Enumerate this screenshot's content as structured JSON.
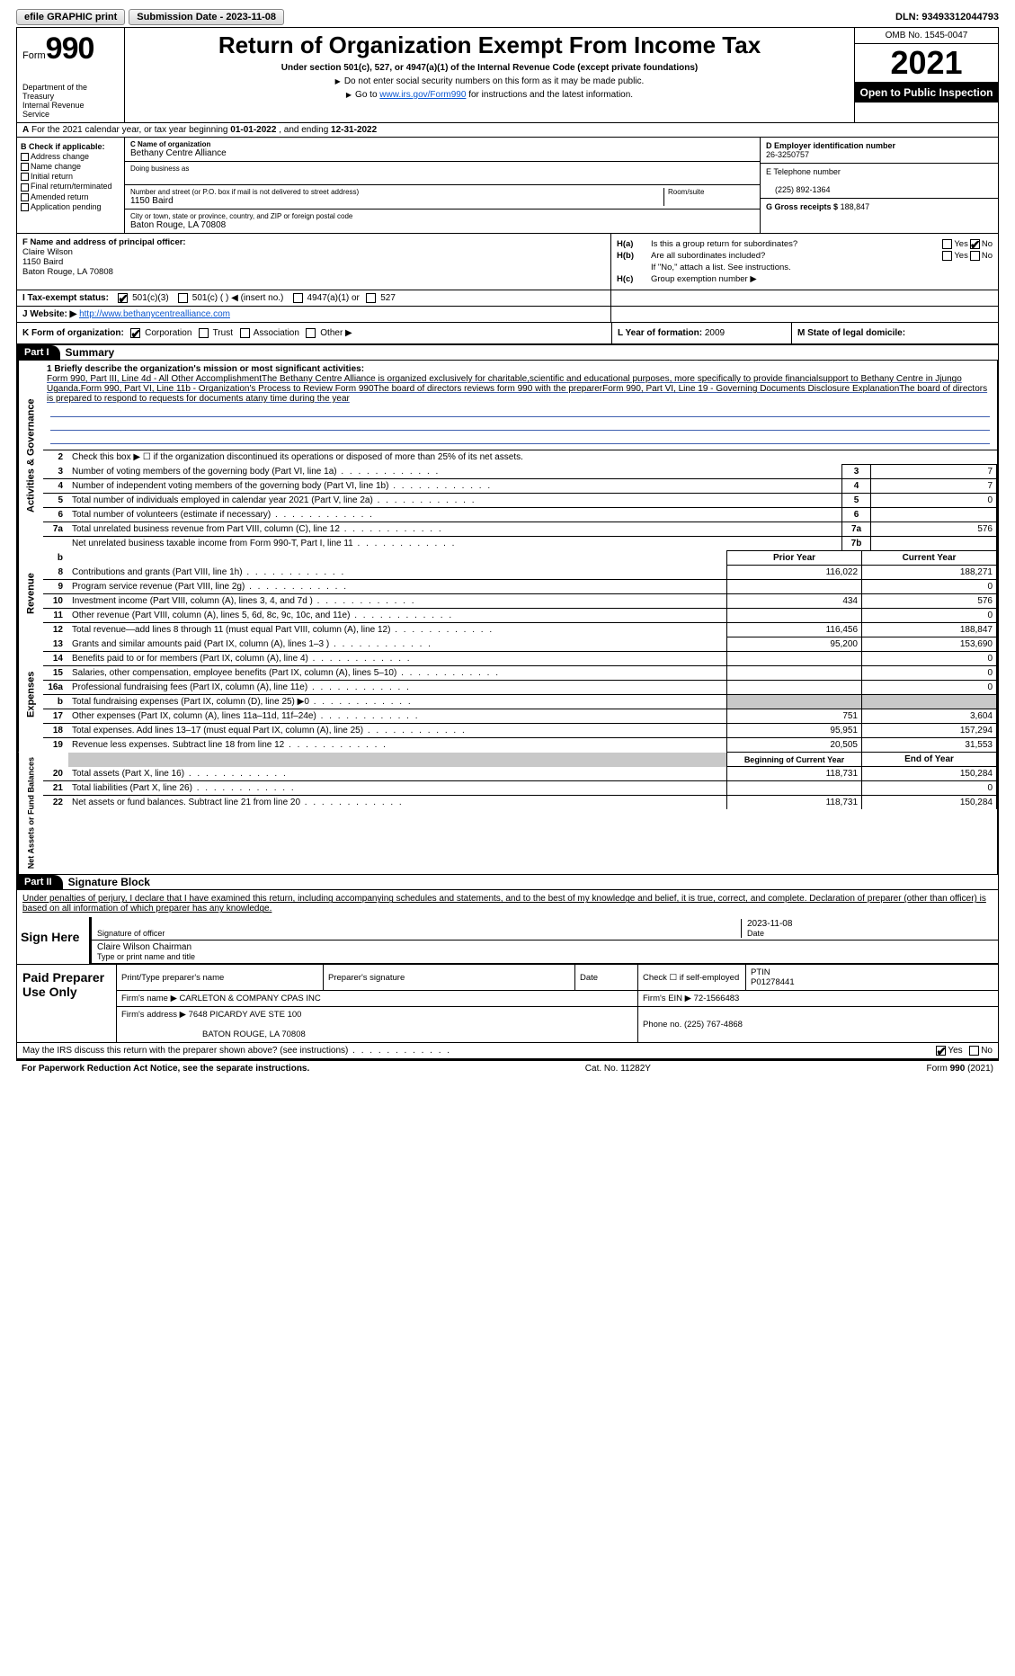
{
  "toolbar": {
    "efile": "efile GRAPHIC print",
    "submission": "Submission Date - 2023-11-08",
    "dln_label": "DLN:",
    "dln": "93493312044793"
  },
  "header": {
    "form_word": "Form",
    "form_num": "990",
    "dept": "Department of the Treasury",
    "irs": "Internal Revenue",
    "svc": "Service",
    "title": "Return of Organization Exempt From Income Tax",
    "sub": "Under section 501(c), 527, or 4947(a)(1) of the Internal Revenue Code (except private foundations)",
    "note1": "Do not enter social security numbers on this form as it may be made public.",
    "note2_pre": "Go to ",
    "note2_link": "www.irs.gov/Form990",
    "note2_post": " for instructions and the latest information.",
    "omb": "OMB No. 1545-0047",
    "year": "2021",
    "pubins": "Open to Public Inspection"
  },
  "row_a": {
    "pre": "For the 2021 calendar year, or tax year beginning ",
    "begin": "01-01-2022",
    "mid": "  , and ending ",
    "end": "12-31-2022",
    "a": "A"
  },
  "col_b": {
    "hdr": "B Check if applicable:",
    "items": [
      "Address change",
      "Name change",
      "Initial return",
      "Final return/terminated",
      "Amended return",
      "Application pending"
    ]
  },
  "col_c": {
    "name_lbl": "C Name of organization",
    "name": "Bethany Centre Alliance",
    "dba_lbl": "Doing business as",
    "dba": "",
    "addr_lbl": "Number and street (or P.O. box if mail is not delivered to street address)",
    "addr": "1150 Baird",
    "room_lbl": "Room/suite",
    "city_lbl": "City or town, state or province, country, and ZIP or foreign postal code",
    "city": "Baton Rouge, LA  70808"
  },
  "col_d": {
    "d_lbl": "D Employer identification number",
    "d_val": "26-3250757",
    "e_lbl": "E Telephone number",
    "e_val": "(225) 892-1364",
    "g_lbl": "G Gross receipts $",
    "g_val": "188,847"
  },
  "col_f": {
    "lbl": "F Name and address of principal officer:",
    "name": "Claire Wilson",
    "addr1": "1150 Baird",
    "addr2": "Baton Rouge, LA  70808"
  },
  "col_h": {
    "ha": "H(a)",
    "ha_txt": "Is this a group return for subordinates?",
    "hb": "H(b)",
    "hb_txt": "Are all subordinates included?",
    "hb_note": "If \"No,\" attach a list. See instructions.",
    "hc": "H(c)",
    "hc_txt": "Group exemption number ▶",
    "yes": "Yes",
    "no": "No"
  },
  "row_i": {
    "lbl": "I   Tax-exempt status:",
    "o1": "501(c)(3)",
    "o2": "501(c) (  ) ◀ (insert no.)",
    "o3": "4947(a)(1) or",
    "o4": "527"
  },
  "row_j": {
    "lbl": "J   Website: ▶",
    "url": "http://www.bethanycentrealliance.com"
  },
  "row_k": {
    "lbl": "K Form of organization:",
    "o1": "Corporation",
    "o2": "Trust",
    "o3": "Association",
    "o4": "Other ▶",
    "l_lbl": "L Year of formation:",
    "l_val": "2009",
    "m_lbl": "M State of legal domicile:"
  },
  "parts": {
    "p1": "Part I",
    "p1t": "Summary",
    "p2": "Part II",
    "p2t": "Signature Block"
  },
  "summary": {
    "tab1": "Activities & Governance",
    "tab2": "Revenue",
    "tab3": "Expenses",
    "tab4": "Net Assets or Fund Balances",
    "l1_lbl": "1  Briefly describe the organization's mission or most significant activities:",
    "l1_txt": "Form 990, Part III, Line 4d - All Other AccomplishmentThe Bethany Centre Alliance is organized exclusively for charitable,scientific and educational purposes, more specifically to provide financialsupport to Bethany Centre in Jjungo Uganda.Form 990, Part VI, Line 11b - Organization's Process to Review Form 990The board of directors reviews form 990 with the preparerForm 990, Part VI, Line 19 - Governing Documents Disclosure ExplanationThe board of directors is prepared to respond to requests for documents atany time during the year",
    "l2": "Check this box ▶ ☐ if the organization discontinued its operations or disposed of more than 25% of its net assets.",
    "rows_a": [
      {
        "n": "3",
        "d": "Number of voting members of the governing body (Part VI, line 1a)",
        "k": "3",
        "v": "7"
      },
      {
        "n": "4",
        "d": "Number of independent voting members of the governing body (Part VI, line 1b)",
        "k": "4",
        "v": "7"
      },
      {
        "n": "5",
        "d": "Total number of individuals employed in calendar year 2021 (Part V, line 2a)",
        "k": "5",
        "v": "0"
      },
      {
        "n": "6",
        "d": "Total number of volunteers (estimate if necessary)",
        "k": "6",
        "v": ""
      },
      {
        "n": "7a",
        "d": "Total unrelated business revenue from Part VIII, column (C), line 12",
        "k": "7a",
        "v": "576"
      },
      {
        "n": "",
        "d": "Net unrelated business taxable income from Form 990-T, Part I, line 11",
        "k": "7b",
        "v": ""
      }
    ],
    "hdr_b": "b",
    "hdr_py": "Prior Year",
    "hdr_cy": "Current Year",
    "rows_r": [
      {
        "n": "8",
        "d": "Contributions and grants (Part VIII, line 1h)",
        "p": "116,022",
        "c": "188,271"
      },
      {
        "n": "9",
        "d": "Program service revenue (Part VIII, line 2g)",
        "p": "",
        "c": "0"
      },
      {
        "n": "10",
        "d": "Investment income (Part VIII, column (A), lines 3, 4, and 7d )",
        "p": "434",
        "c": "576"
      },
      {
        "n": "11",
        "d": "Other revenue (Part VIII, column (A), lines 5, 6d, 8c, 9c, 10c, and 11e)",
        "p": "",
        "c": "0"
      },
      {
        "n": "12",
        "d": "Total revenue—add lines 8 through 11 (must equal Part VIII, column (A), line 12)",
        "p": "116,456",
        "c": "188,847"
      }
    ],
    "rows_e": [
      {
        "n": "13",
        "d": "Grants and similar amounts paid (Part IX, column (A), lines 1–3 )",
        "p": "95,200",
        "c": "153,690"
      },
      {
        "n": "14",
        "d": "Benefits paid to or for members (Part IX, column (A), line 4)",
        "p": "",
        "c": "0"
      },
      {
        "n": "15",
        "d": "Salaries, other compensation, employee benefits (Part IX, column (A), lines 5–10)",
        "p": "",
        "c": "0"
      },
      {
        "n": "16a",
        "d": "Professional fundraising fees (Part IX, column (A), line 11e)",
        "p": "",
        "c": "0"
      },
      {
        "n": "b",
        "d": "Total fundraising expenses (Part IX, column (D), line 25) ▶0",
        "p": "GREY",
        "c": "GREY"
      },
      {
        "n": "17",
        "d": "Other expenses (Part IX, column (A), lines 11a–11d, 11f–24e)",
        "p": "751",
        "c": "3,604"
      },
      {
        "n": "18",
        "d": "Total expenses. Add lines 13–17 (must equal Part IX, column (A), line 25)",
        "p": "95,951",
        "c": "157,294"
      },
      {
        "n": "19",
        "d": "Revenue less expenses. Subtract line 18 from line 12",
        "p": "20,505",
        "c": "31,553"
      }
    ],
    "hdr_bcy": "Beginning of Current Year",
    "hdr_eoy": "End of Year",
    "rows_n": [
      {
        "n": "20",
        "d": "Total assets (Part X, line 16)",
        "p": "118,731",
        "c": "150,284"
      },
      {
        "n": "21",
        "d": "Total liabilities (Part X, line 26)",
        "p": "",
        "c": "0"
      },
      {
        "n": "22",
        "d": "Net assets or fund balances. Subtract line 21 from line 20",
        "p": "118,731",
        "c": "150,284"
      }
    ]
  },
  "sig": {
    "decl": "Under penalties of perjury, I declare that I have examined this return, including accompanying schedules and statements, and to the best of my knowledge and belief, it is true, correct, and complete. Declaration of preparer (other than officer) is based on all information of which preparer has any knowledge.",
    "sign": "Sign Here",
    "sig_lbl": "Signature of officer",
    "date_lbl": "Date",
    "date_val": "2023-11-08",
    "name_val": "Claire Wilson  Chairman",
    "name_lbl": "Type or print name and title",
    "paid": "Paid Preparer Use Only",
    "pp_name_lbl": "Print/Type preparer's name",
    "pp_sig_lbl": "Preparer's signature",
    "pp_date_lbl": "Date",
    "pp_check": "Check ☐ if self-employed",
    "pp_ptin_lbl": "PTIN",
    "pp_ptin": "P01278441",
    "firm_name_lbl": "Firm's name   ▶",
    "firm_name": "CARLETON & COMPANY CPAS INC",
    "firm_ein_lbl": "Firm's EIN ▶",
    "firm_ein": "72-1566483",
    "firm_addr_lbl": "Firm's address ▶",
    "firm_addr1": "7648 PICARDY AVE STE 100",
    "firm_addr2": "BATON ROUGE, LA  70808",
    "phone_lbl": "Phone no.",
    "phone": "(225) 767-4868",
    "discuss": "May the IRS discuss this return with the preparer shown above? (see instructions)"
  },
  "footer": {
    "left": "For Paperwork Reduction Act Notice, see the separate instructions.",
    "mid": "Cat. No. 11282Y",
    "right_a": "Form ",
    "right_b": "990",
    "right_c": " (2021)"
  }
}
